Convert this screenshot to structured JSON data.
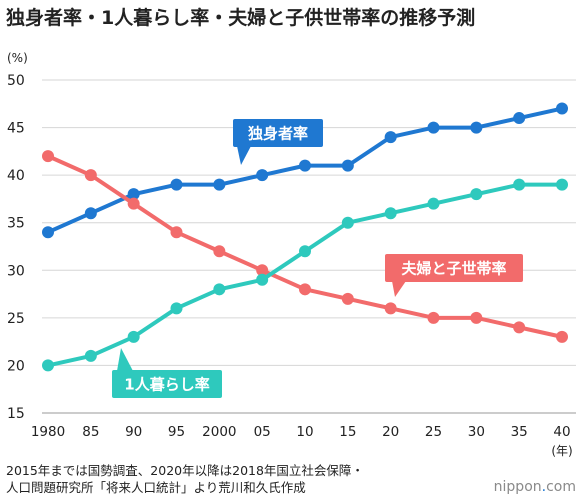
{
  "title": "独身者率・1人暮らし率・夫婦と子供世帯率の推移予測",
  "note_lines": [
    "2015年までは国勢調査、2020年以降は2018年国立社会保障・",
    "人口問題研究所「将来人口統計」より荒川和久氏作成"
  ],
  "brand": {
    "prefix": "nippon",
    "dot": ".",
    "suffix": "com"
  },
  "chart_data": {
    "type": "line",
    "y_unit": "(%)",
    "x_unit": "(年)",
    "ylim": [
      15,
      50
    ],
    "yticks": [
      15,
      20,
      25,
      30,
      35,
      40,
      45,
      50
    ],
    "categories": [
      "1980",
      "85",
      "90",
      "95",
      "2000",
      "05",
      "10",
      "15",
      "20",
      "25",
      "30",
      "35",
      "40"
    ],
    "grid": true,
    "series": [
      {
        "name": "独身者率",
        "color": "#1f78d1",
        "values": [
          34,
          36,
          38,
          39,
          39,
          40,
          41,
          41,
          44,
          45,
          45,
          46,
          47
        ]
      },
      {
        "name": "夫婦と子世帯率",
        "color": "#f26b6b",
        "values": [
          42,
          40,
          37,
          34,
          32,
          30,
          28,
          27,
          26,
          25,
          25,
          24,
          23
        ]
      },
      {
        "name": "1人暮らし率",
        "color": "#2ec9bd",
        "values": [
          20,
          21,
          23,
          26,
          28,
          29,
          32,
          35,
          36,
          37,
          38,
          39,
          39
        ]
      }
    ]
  }
}
